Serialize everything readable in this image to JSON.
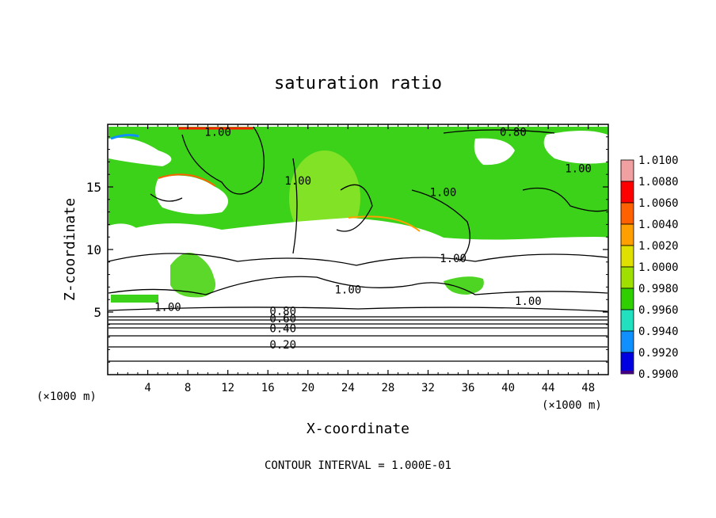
{
  "chart_data": {
    "type": "heatmap",
    "title": "saturation ratio",
    "xlabel": "X-coordinate",
    "ylabel": "Z-coordinate",
    "x_unit": "(×1000 m)",
    "x_unit_right": "(×1000 m)",
    "xlim": [
      0,
      50
    ],
    "ylim": [
      0,
      20
    ],
    "x_ticks": [
      4,
      8,
      12,
      16,
      20,
      24,
      28,
      32,
      36,
      40,
      44,
      48
    ],
    "y_ticks": [
      5,
      10,
      15
    ],
    "footer": "CONTOUR INTERVAL = 1.000E-01",
    "colorbar": {
      "labels": [
        "1.0100",
        "1.0080",
        "1.0060",
        "1.0040",
        "1.0020",
        "1.0000",
        "0.9980",
        "0.9960",
        "0.9940",
        "0.9920",
        "0.9900"
      ],
      "colors": [
        "#f0a0a0",
        "#ff0000",
        "#ff6000",
        "#ffa000",
        "#e0e000",
        "#a0e000",
        "#30d000",
        "#20e0c0",
        "#1090ff",
        "#0000e0",
        "#400080"
      ]
    },
    "contour_labels": [
      {
        "text": "1.00",
        "x": 11.0,
        "z": 19.4
      },
      {
        "text": "0.80",
        "x": 40.5,
        "z": 19.4
      },
      {
        "text": "1.00",
        "x": 19.0,
        "z": 15.5
      },
      {
        "text": "1.00",
        "x": 33.5,
        "z": 14.6
      },
      {
        "text": "1.00",
        "x": 47.0,
        "z": 16.5
      },
      {
        "text": "1.00",
        "x": 34.5,
        "z": 9.3
      },
      {
        "text": "1.00",
        "x": 24.0,
        "z": 6.8
      },
      {
        "text": "1.00",
        "x": 42.0,
        "z": 5.9
      },
      {
        "text": "1.00",
        "x": 6.0,
        "z": 5.4
      },
      {
        "text": "0.80",
        "x": 17.5,
        "z": 5.1
      },
      {
        "text": "0.60",
        "x": 17.5,
        "z": 4.5
      },
      {
        "text": "0.40",
        "x": 17.5,
        "z": 3.7
      },
      {
        "text": "0.20",
        "x": 17.5,
        "z": 2.4
      }
    ]
  }
}
